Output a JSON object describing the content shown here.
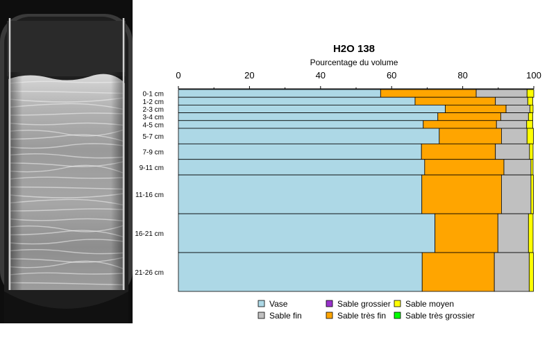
{
  "chart_data": {
    "type": "bar",
    "orientation": "horizontal",
    "stacked": true,
    "title": "H2O 138",
    "xlabel": "Pourcentage du volume",
    "ylabel": "",
    "xlim": [
      0,
      100
    ],
    "x_ticks": [
      0,
      20,
      40,
      60,
      80,
      100
    ],
    "grid": false,
    "legend_position": "bottom",
    "categories": [
      "0-1 cm",
      "1-2 cm",
      "2-3 cm",
      "3-4 cm",
      "4-5 cm",
      "5-7 cm",
      "7-9 cm",
      "9-11 cm",
      "11-16 cm",
      "16-21 cm",
      "21-26 cm"
    ],
    "depth_intervals_cm": [
      [
        0,
        1
      ],
      [
        1,
        2
      ],
      [
        2,
        3
      ],
      [
        3,
        4
      ],
      [
        4,
        5
      ],
      [
        5,
        7
      ],
      [
        7,
        9
      ],
      [
        9,
        11
      ],
      [
        11,
        16
      ],
      [
        16,
        21
      ],
      [
        21,
        26
      ]
    ],
    "series": [
      {
        "name": "Vase",
        "color": "#add8e6",
        "values": [
          56.9,
          66.6,
          75.1,
          73.0,
          68.9,
          73.4,
          68.4,
          69.3,
          68.5,
          72.2,
          68.6
        ]
      },
      {
        "name": "Sable très fin",
        "color": "#ffa500",
        "values": [
          26.9,
          22.6,
          17.1,
          17.7,
          20.6,
          17.5,
          20.8,
          22.3,
          22.4,
          17.7,
          20.3
        ]
      },
      {
        "name": "Sable fin",
        "color": "#c0c0c0",
        "values": [
          14.3,
          9.1,
          6.7,
          7.8,
          8.5,
          7.2,
          9.6,
          7.6,
          8.3,
          8.6,
          9.8
        ]
      },
      {
        "name": "Sable moyen",
        "color": "#ffff00",
        "values": [
          1.9,
          1.4,
          0.9,
          1.2,
          1.7,
          1.8,
          1.0,
          0.6,
          0.7,
          1.3,
          1.2
        ]
      },
      {
        "name": "Sable grossier",
        "color": "#9932cc",
        "values": [
          0,
          0,
          0,
          0,
          0,
          0,
          0,
          0,
          0,
          0,
          0
        ]
      },
      {
        "name": "Sable très grossier",
        "color": "#00ff00",
        "values": [
          0,
          0,
          0,
          0,
          0,
          0,
          0,
          0,
          0,
          0,
          0
        ]
      }
    ]
  },
  "legend_order": [
    0,
    2,
    4,
    1,
    3,
    5
  ]
}
